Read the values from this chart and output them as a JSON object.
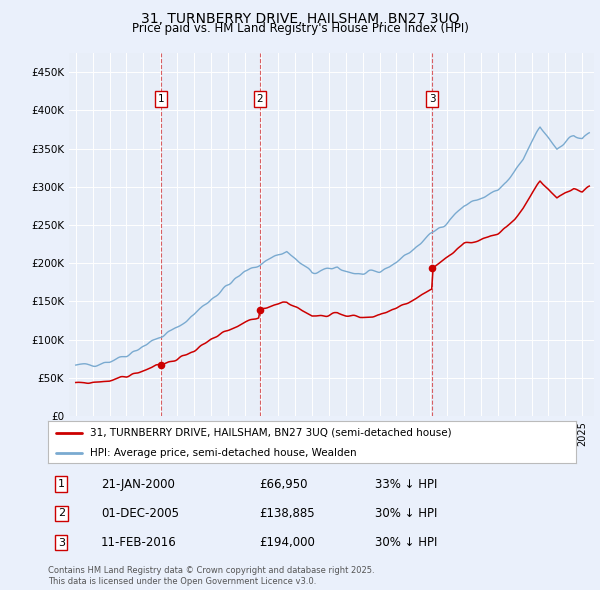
{
  "title": "31, TURNBERRY DRIVE, HAILSHAM, BN27 3UQ",
  "subtitle": "Price paid vs. HM Land Registry's House Price Index (HPI)",
  "legend_line1": "31, TURNBERRY DRIVE, HAILSHAM, BN27 3UQ (semi-detached house)",
  "legend_line2": "HPI: Average price, semi-detached house, Wealden",
  "transactions": [
    {
      "num": 1,
      "date_label": "21-JAN-2000",
      "date_x": 2000.055,
      "price": 66950,
      "pct": "33% ↓ HPI"
    },
    {
      "num": 2,
      "date_label": "01-DEC-2005",
      "date_x": 2005.917,
      "price": 138885,
      "pct": "30% ↓ HPI"
    },
    {
      "num": 3,
      "date_label": "11-FEB-2016",
      "date_x": 2016.117,
      "price": 194000,
      "pct": "30% ↓ HPI"
    }
  ],
  "footnote1": "Contains HM Land Registry data © Crown copyright and database right 2025.",
  "footnote2": "This data is licensed under the Open Government Licence v3.0.",
  "bg_color": "#eaf0fb",
  "plot_bg_color": "#e8eef8",
  "red_color": "#cc0000",
  "blue_color": "#7aaad0",
  "ylim": [
    0,
    475000
  ],
  "yticks": [
    0,
    50000,
    100000,
    150000,
    200000,
    250000,
    300000,
    350000,
    400000,
    450000
  ],
  "xlim_start": 1994.6,
  "xlim_end": 2025.7
}
